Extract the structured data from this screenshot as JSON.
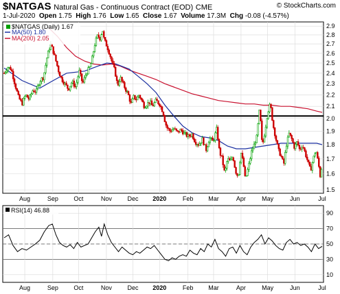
{
  "header": {
    "symbol": "$NATGAS",
    "name": "Natural Gas - Continuous Contract (EOD)",
    "exchange": "CME",
    "brand": "© StockCharts.com",
    "date": "1-Jul-2020",
    "open_label": "Open",
    "open": "1.75",
    "high_label": "High",
    "high": "1.76",
    "low_label": "Low",
    "low": "1.65",
    "close_label": "Close",
    "close": "1.67",
    "volume_label": "Volume",
    "volume": "17.3M",
    "chg_label": "Chg",
    "chg": "-0.08 (-4.57%)"
  },
  "colors": {
    "up": "#00a000",
    "down": "#cc0000",
    "ma50": "#1a2fa0",
    "ma200": "#c8102e",
    "grid": "#d8d8d8",
    "rsi": "#000000"
  },
  "chart_data": [
    {
      "type": "line",
      "subtype": "candlestick",
      "legend": [
        {
          "label": "$NATGAS (Daily) 1.67",
          "color": "#00a000"
        },
        {
          "label": "MA(50) 1.80",
          "color": "#1a2fa0"
        },
        {
          "label": "MA(200) 2.05",
          "color": "#c8102e"
        }
      ],
      "legend_position": "top-left",
      "yscale": "log",
      "ylim": [
        1.48,
        2.95
      ],
      "yticks": [
        1.5,
        1.6,
        1.7,
        1.8,
        1.9,
        2.0,
        2.1,
        2.2,
        2.3,
        2.4,
        2.5,
        2.6,
        2.7,
        2.8,
        2.9
      ],
      "xticks": [
        {
          "label": "Aug",
          "x": 23.1,
          "bold": false
        },
        {
          "label": "Sep",
          "x": 54.5,
          "bold": false
        },
        {
          "label": "Oct",
          "x": 83.3,
          "bold": false
        },
        {
          "label": "Nov",
          "x": 114.5,
          "bold": false
        },
        {
          "label": "Dec",
          "x": 144.2,
          "bold": false
        },
        {
          "label": "2020",
          "x": 174.0,
          "bold": true
        },
        {
          "label": "Feb",
          "x": 205.8,
          "bold": false
        },
        {
          "label": "Mar",
          "x": 234.5,
          "bold": false
        },
        {
          "label": "Apr",
          "x": 265.2,
          "bold": false
        },
        {
          "label": "May",
          "x": 295.0,
          "bold": false
        },
        {
          "label": "Jun",
          "x": 325.5,
          "bold": false
        },
        {
          "label": "Jul",
          "x": 356.0,
          "bold": false
        }
      ],
      "horizontal_line": 2.02,
      "price_path": [
        [
          0,
          2.4
        ],
        [
          4,
          2.46
        ],
        [
          8,
          2.44
        ],
        [
          12,
          2.3
        ],
        [
          16,
          2.18
        ],
        [
          20,
          2.12
        ],
        [
          24,
          2.2
        ],
        [
          28,
          2.16
        ],
        [
          32,
          2.24
        ],
        [
          36,
          2.23
        ],
        [
          40,
          2.33
        ],
        [
          44,
          2.36
        ],
        [
          48,
          2.56
        ],
        [
          52,
          2.7
        ],
        [
          55,
          2.62
        ],
        [
          58,
          2.52
        ],
        [
          61,
          2.42
        ],
        [
          64,
          2.35
        ],
        [
          68,
          2.3
        ],
        [
          72,
          2.25
        ],
        [
          76,
          2.32
        ],
        [
          80,
          2.27
        ],
        [
          84,
          2.42
        ],
        [
          88,
          2.3
        ],
        [
          92,
          2.4
        ],
        [
          96,
          2.46
        ],
        [
          98,
          2.52
        ],
        [
          100,
          2.62
        ],
        [
          102,
          2.72
        ],
        [
          105,
          2.8
        ],
        [
          107,
          2.75
        ],
        [
          110,
          2.86
        ],
        [
          112,
          2.74
        ],
        [
          115,
          2.68
        ],
        [
          118,
          2.6
        ],
        [
          121,
          2.5
        ],
        [
          124,
          2.42
        ],
        [
          127,
          2.28
        ],
        [
          130,
          2.36
        ],
        [
          133,
          2.3
        ],
        [
          136,
          2.25
        ],
        [
          139,
          2.2
        ],
        [
          142,
          2.12
        ],
        [
          145,
          2.18
        ],
        [
          148,
          2.16
        ],
        [
          151,
          2.2
        ],
        [
          154,
          2.15
        ],
        [
          157,
          2.1
        ],
        [
          160,
          2.12
        ],
        [
          163,
          2.14
        ],
        [
          166,
          2.1
        ],
        [
          170,
          2.15
        ],
        [
          174,
          2.12
        ],
        [
          178,
          2.05
        ],
        [
          180,
          1.98
        ],
        [
          182,
          1.93
        ],
        [
          186,
          1.9
        ],
        [
          190,
          1.92
        ],
        [
          194,
          1.89
        ],
        [
          198,
          1.91
        ],
        [
          202,
          1.88
        ],
        [
          206,
          1.86
        ],
        [
          210,
          1.88
        ],
        [
          214,
          1.82
        ],
        [
          218,
          1.8
        ],
        [
          222,
          1.84
        ],
        [
          226,
          1.76
        ],
        [
          230,
          1.85
        ],
        [
          234,
          1.82
        ],
        [
          238,
          1.92
        ],
        [
          241,
          1.75
        ],
        [
          244,
          1.7
        ],
        [
          247,
          1.6
        ],
        [
          250,
          1.7
        ],
        [
          253,
          1.68
        ],
        [
          256,
          1.72
        ],
        [
          259,
          1.62
        ],
        [
          262,
          1.58
        ],
        [
          265,
          1.75
        ],
        [
          268,
          1.66
        ],
        [
          270,
          1.56
        ],
        [
          274,
          1.66
        ],
        [
          277,
          1.75
        ],
        [
          280,
          1.8
        ],
        [
          283,
          1.86
        ],
        [
          286,
          2.08
        ],
        [
          289,
          1.78
        ],
        [
          292,
          1.9
        ],
        [
          295,
          2.05
        ],
        [
          298,
          2.12
        ],
        [
          301,
          1.95
        ],
        [
          304,
          1.85
        ],
        [
          307,
          1.76
        ],
        [
          310,
          1.72
        ],
        [
          313,
          1.66
        ],
        [
          316,
          1.8
        ],
        [
          319,
          1.88
        ],
        [
          322,
          1.84
        ],
        [
          325,
          1.78
        ],
        [
          328,
          1.82
        ],
        [
          331,
          1.76
        ],
        [
          334,
          1.8
        ],
        [
          337,
          1.74
        ],
        [
          340,
          1.68
        ],
        [
          343,
          1.62
        ],
        [
          346,
          1.7
        ],
        [
          349,
          1.76
        ],
        [
          352,
          1.66
        ],
        [
          354,
          1.58
        ],
        [
          356,
          1.67
        ]
      ],
      "ma50_path": [
        [
          0,
          2.45
        ],
        [
          20,
          2.33
        ],
        [
          40,
          2.26
        ],
        [
          55,
          2.33
        ],
        [
          70,
          2.4
        ],
        [
          90,
          2.42
        ],
        [
          105,
          2.47
        ],
        [
          115,
          2.5
        ],
        [
          125,
          2.49
        ],
        [
          140,
          2.44
        ],
        [
          150,
          2.37
        ],
        [
          160,
          2.3
        ],
        [
          170,
          2.22
        ],
        [
          180,
          2.11
        ],
        [
          190,
          2.02
        ],
        [
          200,
          1.94
        ],
        [
          210,
          1.89
        ],
        [
          220,
          1.86
        ],
        [
          230,
          1.85
        ],
        [
          240,
          1.83
        ],
        [
          250,
          1.79
        ],
        [
          260,
          1.77
        ],
        [
          270,
          1.77
        ],
        [
          280,
          1.78
        ],
        [
          290,
          1.79
        ],
        [
          300,
          1.8
        ],
        [
          310,
          1.81
        ],
        [
          320,
          1.81
        ],
        [
          330,
          1.81
        ],
        [
          340,
          1.81
        ],
        [
          350,
          1.81
        ],
        [
          356,
          1.8
        ]
      ],
      "ma200_path": [
        [
          50,
          2.88
        ],
        [
          60,
          2.78
        ],
        [
          70,
          2.66
        ],
        [
          80,
          2.57
        ],
        [
          90,
          2.52
        ],
        [
          100,
          2.49
        ],
        [
          110,
          2.48
        ],
        [
          120,
          2.49
        ],
        [
          130,
          2.47
        ],
        [
          140,
          2.43
        ],
        [
          150,
          2.4
        ],
        [
          160,
          2.37
        ],
        [
          170,
          2.34
        ],
        [
          180,
          2.3
        ],
        [
          190,
          2.27
        ],
        [
          200,
          2.24
        ],
        [
          210,
          2.21
        ],
        [
          220,
          2.19
        ],
        [
          230,
          2.17
        ],
        [
          240,
          2.15
        ],
        [
          250,
          2.14
        ],
        [
          260,
          2.13
        ],
        [
          270,
          2.12
        ],
        [
          280,
          2.12
        ],
        [
          290,
          2.11
        ],
        [
          300,
          2.11
        ],
        [
          310,
          2.1
        ],
        [
          320,
          2.1
        ],
        [
          330,
          2.09
        ],
        [
          340,
          2.08
        ],
        [
          350,
          2.06
        ],
        [
          356,
          2.05
        ]
      ]
    },
    {
      "type": "line",
      "legend": [
        {
          "label": "RSI(14) 46.88",
          "color": "#000000"
        }
      ],
      "ylim": [
        0,
        100
      ],
      "yticks": [
        10,
        30,
        50,
        70,
        90
      ],
      "reference_lines": [
        30,
        50,
        70
      ],
      "xticks": [
        {
          "label": "Aug",
          "x": 23.1,
          "bold": false
        },
        {
          "label": "Sep",
          "x": 54.5,
          "bold": false
        },
        {
          "label": "Oct",
          "x": 83.3,
          "bold": false
        },
        {
          "label": "Nov",
          "x": 114.5,
          "bold": false
        },
        {
          "label": "Dec",
          "x": 144.2,
          "bold": false
        },
        {
          "label": "2020",
          "x": 174.0,
          "bold": true
        },
        {
          "label": "Feb",
          "x": 205.8,
          "bold": false
        },
        {
          "label": "Mar",
          "x": 234.5,
          "bold": false
        },
        {
          "label": "Apr",
          "x": 265.2,
          "bold": false
        },
        {
          "label": "May",
          "x": 295.0,
          "bold": false
        },
        {
          "label": "Jun",
          "x": 325.5,
          "bold": false
        },
        {
          "label": "Jul",
          "x": 356.0,
          "bold": false
        }
      ],
      "rsi_path": [
        [
          0,
          58
        ],
        [
          5,
          62
        ],
        [
          10,
          48
        ],
        [
          15,
          40
        ],
        [
          20,
          44
        ],
        [
          25,
          42
        ],
        [
          30,
          46
        ],
        [
          35,
          50
        ],
        [
          40,
          55
        ],
        [
          45,
          66
        ],
        [
          50,
          74
        ],
        [
          54,
          76
        ],
        [
          58,
          62
        ],
        [
          62,
          52
        ],
        [
          66,
          48
        ],
        [
          70,
          46
        ],
        [
          74,
          49
        ],
        [
          78,
          44
        ],
        [
          82,
          52
        ],
        [
          86,
          46
        ],
        [
          90,
          48
        ],
        [
          94,
          50
        ],
        [
          98,
          58
        ],
        [
          102,
          66
        ],
        [
          106,
          72
        ],
        [
          109,
          60
        ],
        [
          112,
          76
        ],
        [
          116,
          62
        ],
        [
          120,
          52
        ],
        [
          124,
          46
        ],
        [
          128,
          40
        ],
        [
          132,
          46
        ],
        [
          136,
          42
        ],
        [
          140,
          38
        ],
        [
          144,
          36
        ],
        [
          148,
          40
        ],
        [
          152,
          38
        ],
        [
          156,
          42
        ],
        [
          160,
          46
        ],
        [
          164,
          44
        ],
        [
          168,
          48
        ],
        [
          172,
          42
        ],
        [
          176,
          36
        ],
        [
          180,
          30
        ],
        [
          184,
          28
        ],
        [
          188,
          32
        ],
        [
          192,
          30
        ],
        [
          196,
          34
        ],
        [
          200,
          36
        ],
        [
          204,
          34
        ],
        [
          208,
          42
        ],
        [
          212,
          38
        ],
        [
          216,
          36
        ],
        [
          220,
          44
        ],
        [
          224,
          40
        ],
        [
          228,
          50
        ],
        [
          232,
          46
        ],
        [
          236,
          56
        ],
        [
          240,
          44
        ],
        [
          244,
          40
        ],
        [
          248,
          34
        ],
        [
          252,
          44
        ],
        [
          256,
          46
        ],
        [
          260,
          38
        ],
        [
          264,
          48
        ],
        [
          268,
          40
        ],
        [
          272,
          36
        ],
        [
          276,
          46
        ],
        [
          280,
          52
        ],
        [
          284,
          56
        ],
        [
          288,
          62
        ],
        [
          292,
          50
        ],
        [
          296,
          58
        ],
        [
          300,
          54
        ],
        [
          304,
          48
        ],
        [
          308,
          44
        ],
        [
          312,
          42
        ],
        [
          316,
          52
        ],
        [
          320,
          56
        ],
        [
          324,
          50
        ],
        [
          328,
          52
        ],
        [
          332,
          48
        ],
        [
          336,
          50
        ],
        [
          340,
          46
        ],
        [
          344,
          40
        ],
        [
          348,
          50
        ],
        [
          352,
          44
        ],
        [
          356,
          47
        ]
      ]
    }
  ]
}
